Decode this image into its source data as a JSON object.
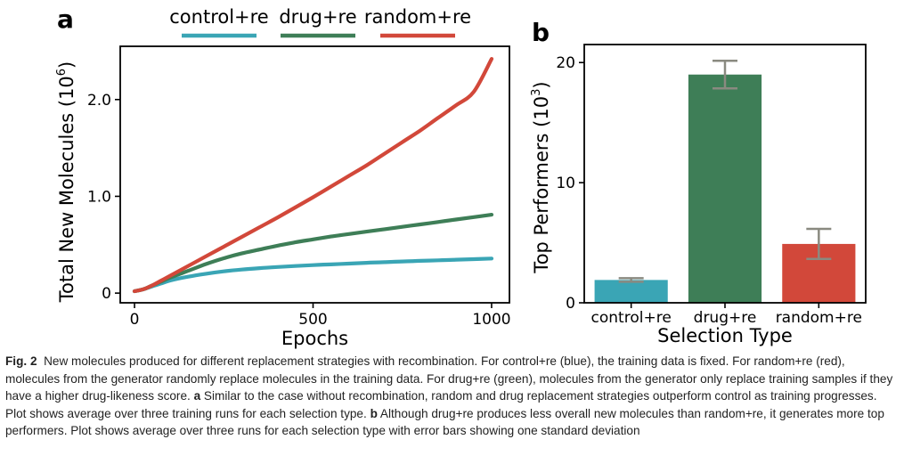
{
  "figure": {
    "panel_a_letter": "a",
    "panel_b_letter": "b"
  },
  "caption": {
    "label": "Fig. 2",
    "part1": "New molecules produced for different replacement strategies with recombination. For control+re (blue), the training data is fixed. For random+re (red), molecules from the generator randomly replace molecules in the training data. For drug+re (green), molecules from the generator only replace training samples if they have a higher drug-likeness score.",
    "ref_a": "a",
    "part2": "Similar to the case without recombination, random and drug replacement strategies outperform control as training progresses. Plot shows average over three training runs for each selection type.",
    "ref_b": "b",
    "part3": "Although drug+re produces less overall new molecules than random+re, it generates more top performers. Plot shows average over three runs for each selection type with error bars showing one standard deviation"
  },
  "chart_data": [
    {
      "type": "line",
      "panel": "a",
      "xlabel": "Epochs",
      "ylabel": "Total New Molecules (10",
      "ylabel_exp": "6",
      "ylabel_close": ")",
      "xlim": [
        -40,
        1050
      ],
      "ylim": [
        -0.1,
        2.55
      ],
      "xticks": [
        0,
        500,
        1000
      ],
      "xtick_labels": [
        "0",
        "500",
        "1000"
      ],
      "yticks": [
        0,
        1.0,
        2.0
      ],
      "ytick_labels": [
        "0",
        "1.0",
        "2.0"
      ],
      "grid": false,
      "legend_position": "top",
      "series": [
        {
          "name": "control+re",
          "color": "#3aa5b5",
          "x": [
            0,
            25,
            50,
            75,
            100,
            150,
            200,
            250,
            300,
            350,
            400,
            450,
            500,
            550,
            600,
            650,
            700,
            750,
            800,
            850,
            900,
            950,
            1000
          ],
          "y": [
            0.02,
            0.04,
            0.07,
            0.1,
            0.13,
            0.17,
            0.2,
            0.225,
            0.243,
            0.258,
            0.27,
            0.28,
            0.289,
            0.297,
            0.305,
            0.313,
            0.32,
            0.327,
            0.333,
            0.339,
            0.345,
            0.351,
            0.357
          ]
        },
        {
          "name": "drug+re",
          "color": "#3e7e57",
          "x": [
            0,
            25,
            50,
            75,
            100,
            150,
            200,
            250,
            300,
            350,
            400,
            450,
            500,
            550,
            600,
            650,
            700,
            750,
            800,
            850,
            900,
            950,
            1000
          ],
          "y": [
            0.02,
            0.04,
            0.08,
            0.12,
            0.16,
            0.23,
            0.3,
            0.36,
            0.41,
            0.45,
            0.49,
            0.525,
            0.555,
            0.585,
            0.61,
            0.635,
            0.66,
            0.685,
            0.71,
            0.735,
            0.76,
            0.785,
            0.81
          ]
        },
        {
          "name": "random+re",
          "color": "#d2483a",
          "x": [
            0,
            25,
            50,
            75,
            100,
            150,
            200,
            250,
            300,
            350,
            400,
            450,
            500,
            550,
            600,
            650,
            700,
            750,
            800,
            850,
            900,
            950,
            1000
          ],
          "y": [
            0.02,
            0.04,
            0.08,
            0.13,
            0.18,
            0.28,
            0.38,
            0.48,
            0.58,
            0.68,
            0.78,
            0.885,
            0.99,
            1.1,
            1.21,
            1.32,
            1.44,
            1.56,
            1.68,
            1.81,
            1.94,
            2.08,
            2.42
          ]
        }
      ]
    },
    {
      "type": "bar",
      "panel": "b",
      "xlabel": "Selection Type",
      "ylabel": "Top Performers (10",
      "ylabel_exp": "3",
      "ylabel_close": ")",
      "ylim": [
        0,
        21.5
      ],
      "yticks": [
        0,
        10,
        20
      ],
      "ytick_labels": [
        "0",
        "10",
        "20"
      ],
      "grid": false,
      "categories": [
        "control+re",
        "drug+re",
        "random+re"
      ],
      "values": [
        1.9,
        19.0,
        4.9
      ],
      "errors": [
        0.15,
        1.15,
        1.25
      ],
      "colors": [
        "#3aa5b5",
        "#3e7e57",
        "#d2483a"
      ],
      "errorbar_color": "#8a8a80"
    }
  ]
}
